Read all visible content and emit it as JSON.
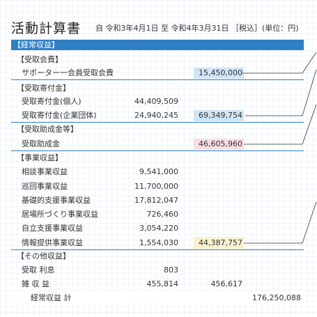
{
  "title": "活動計算書",
  "period": "自 令和3年4月1日 至 令和4年3月31日 ［税込］(単位：円)",
  "section_header": "【経常収益】",
  "groups": {
    "membership": {
      "label": "【受取会費】",
      "items": [
        {
          "name": "サポーター一会員受取会費",
          "subtotal": "15,450,000"
        }
      ]
    },
    "donations": {
      "label": "【受取寄付金】",
      "items": [
        {
          "name": "受取寄付金(個人)",
          "amount": "44,409,509"
        },
        {
          "name": "受取寄付金(企業団体)",
          "amount": "24,940,245",
          "subtotal": "69,349,754"
        }
      ]
    },
    "grants": {
      "label": "【受取助成金等】",
      "items": [
        {
          "name": "受取助成金",
          "subtotal": "46,605,960"
        }
      ]
    },
    "business": {
      "label": "【事業収益】",
      "items": [
        {
          "name": "相談事業収益",
          "amount": "9,541,000"
        },
        {
          "name": "巡回事業収益",
          "amount": "11,700,000"
        },
        {
          "name": "基礎的支援事業収益",
          "amount": "17,812,047"
        },
        {
          "name": "居場所づくり事業収益",
          "amount": "726,460"
        },
        {
          "name": "自立支援事業収益",
          "amount": "3,054,220"
        },
        {
          "name": "情報提供事業収益",
          "amount": "1,554,030",
          "subtotal": "44,387,757"
        }
      ]
    },
    "other": {
      "label": "【その他収益】",
      "items": [
        {
          "name": "受取 利息",
          "amount": "803"
        },
        {
          "name": "雑 収 益",
          "amount": "455,814",
          "subtotal": "456,617"
        }
      ]
    }
  },
  "total": {
    "label": "経常収益 計",
    "value": "176,250,088"
  },
  "colors": {
    "accent": "#2f7fc4",
    "highlight_blue": "#cfe6f7",
    "highlight_pink": "#f9dde6",
    "highlight_yellow": "#fbf1cf"
  }
}
